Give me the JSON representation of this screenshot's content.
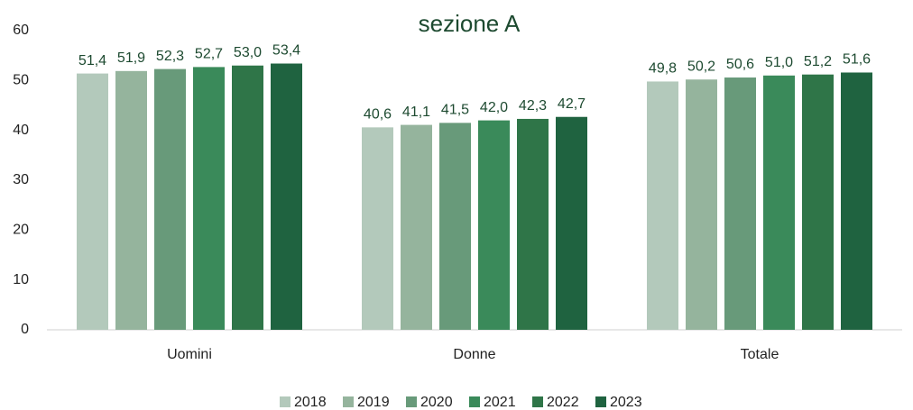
{
  "chart_data": {
    "type": "bar",
    "title": "sezione A",
    "categories": [
      "Uomini",
      "Donne",
      "Totale"
    ],
    "series": [
      {
        "name": "2018",
        "color": "#b3c9bb",
        "values": [
          51.4,
          40.6,
          49.8
        ],
        "value_labels": [
          "51,4",
          "40,6",
          "49,8"
        ]
      },
      {
        "name": "2019",
        "color": "#95b49d",
        "values": [
          51.9,
          41.1,
          50.2
        ],
        "value_labels": [
          "51,9",
          "41,1",
          "50,2"
        ]
      },
      {
        "name": "2020",
        "color": "#689a7a",
        "values": [
          52.3,
          41.5,
          50.6
        ],
        "value_labels": [
          "52,3",
          "41,5",
          "50,6"
        ]
      },
      {
        "name": "2021",
        "color": "#3a8a5a",
        "values": [
          52.7,
          42.0,
          51.0
        ],
        "value_labels": [
          "52,7",
          "42,0",
          "51,0"
        ]
      },
      {
        "name": "2022",
        "color": "#2f7548",
        "values": [
          53.0,
          42.3,
          51.2
        ],
        "value_labels": [
          "53,0",
          "42,3",
          "51,2"
        ]
      },
      {
        "name": "2023",
        "color": "#1f6340",
        "values": [
          53.4,
          42.7,
          51.6
        ],
        "value_labels": [
          "53,4",
          "42,7",
          "51,6"
        ]
      }
    ],
    "ylim": [
      0,
      60
    ],
    "yticks": [
      0,
      10,
      20,
      30,
      40,
      50,
      60
    ],
    "grid": false,
    "legend": "bottom"
  }
}
